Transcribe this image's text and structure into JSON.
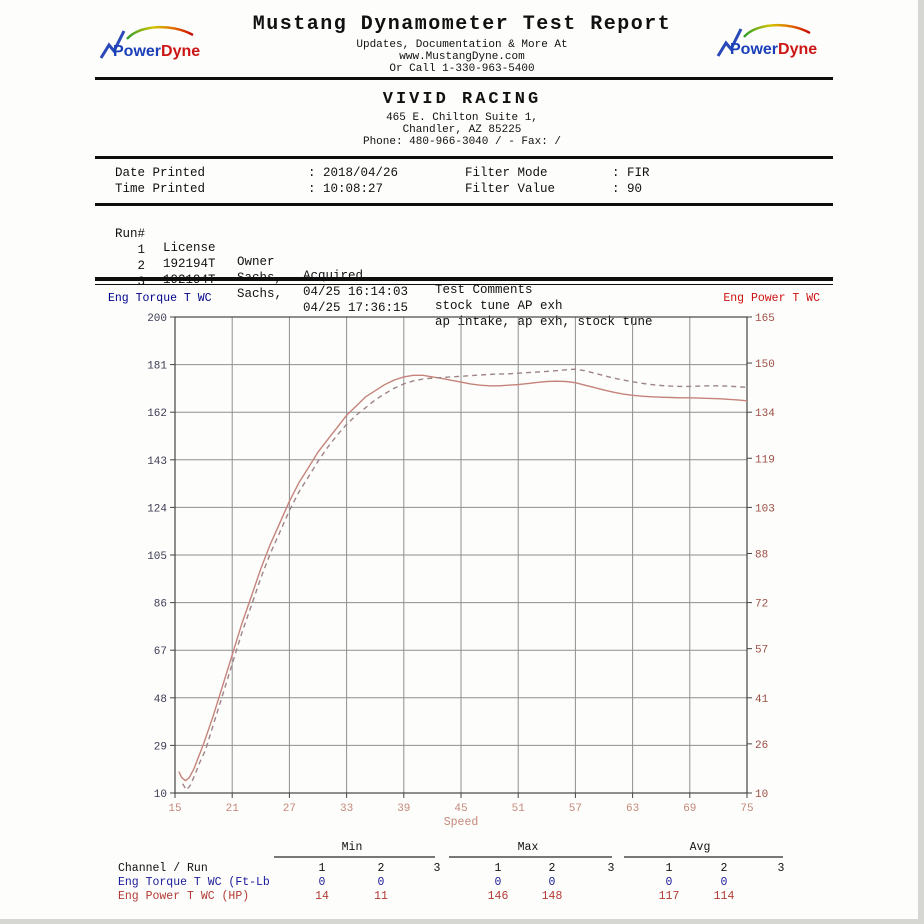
{
  "header": {
    "logo_power": "Power",
    "logo_dyne": "Dyne",
    "title": "Mustang Dynamometer Test Report",
    "subtitle1": "Updates, Documentation & More At",
    "subtitle2": "www.MustangDyne.com",
    "subtitle3": "Or Call 1-330-963-5400"
  },
  "shop": {
    "name": "VIVID RACING",
    "address1": "465 E. Chilton Suite 1,",
    "address2": "Chandler, AZ  85225",
    "phone_line": "Phone: 480-966-3040 /  - Fax:  /"
  },
  "print_info": {
    "date_label": "Date Printed",
    "date_value": ": 2018/04/26",
    "time_label": "Time Printed",
    "time_value": ": 10:08:27",
    "filter_mode_label": "Filter Mode",
    "filter_mode_value": ": FIR",
    "filter_value_label": "Filter Value",
    "filter_value_value": ": 90"
  },
  "runs": {
    "headers": {
      "run": "Run#",
      "license": "License",
      "owner": "Owner",
      "acquired": "Acquired",
      "comments": "Test Comments"
    },
    "rows": [
      {
        "run": "1",
        "license": "192194T",
        "owner": "Sachs,",
        "acquired": "04/25 16:14:03",
        "comments": "stock tune AP exh"
      },
      {
        "run": "2",
        "license": "192194T",
        "owner": "Sachs,",
        "acquired": "04/25 17:36:15",
        "comments": "ap intake, ap exh, stock tune"
      },
      {
        "run": "3",
        "license": "",
        "owner": "",
        "acquired": "",
        "comments": ""
      }
    ]
  },
  "chart_data": {
    "type": "line",
    "title": "",
    "grid": true,
    "left_axis": {
      "label": "Eng Torque T WC",
      "min": 10,
      "max": 200,
      "ticks": [
        200,
        181,
        162,
        143,
        124,
        105,
        86,
        67,
        48,
        29,
        10
      ],
      "color": "#00008b"
    },
    "right_axis": {
      "label": "Eng Power T WC",
      "min": 10,
      "max": 165,
      "ticks": [
        165,
        150,
        134,
        119,
        103,
        88,
        72,
        57,
        41,
        26,
        10
      ],
      "color": "#cc1111"
    },
    "x_axis": {
      "label": "Speed",
      "min": 15,
      "max": 75,
      "ticks": [
        15,
        21,
        27,
        33,
        39,
        45,
        51,
        57,
        63,
        69,
        75
      ]
    },
    "series": [
      {
        "name": "Run 1 Eng Power T WC (HP)",
        "style": "solid",
        "color": "#c5837b",
        "axis": "right",
        "points": [
          [
            15.4,
            17
          ],
          [
            15.7,
            15
          ],
          [
            16.1,
            14
          ],
          [
            16.5,
            15
          ],
          [
            17,
            18
          ],
          [
            17.5,
            22
          ],
          [
            18,
            26
          ],
          [
            19,
            35
          ],
          [
            20,
            45
          ],
          [
            21,
            55
          ],
          [
            22,
            65
          ],
          [
            23,
            74
          ],
          [
            24,
            83
          ],
          [
            25,
            91
          ],
          [
            26,
            98
          ],
          [
            27,
            105
          ],
          [
            28,
            111
          ],
          [
            29,
            116
          ],
          [
            30,
            121
          ],
          [
            31,
            125
          ],
          [
            32,
            129
          ],
          [
            33,
            133
          ],
          [
            34,
            136
          ],
          [
            35,
            139
          ],
          [
            36,
            141
          ],
          [
            37,
            143
          ],
          [
            38,
            144.5
          ],
          [
            39,
            145.5
          ],
          [
            40,
            146
          ],
          [
            41,
            146
          ],
          [
            42,
            145.5
          ],
          [
            43,
            145
          ],
          [
            44,
            144.4
          ],
          [
            45,
            143.8
          ],
          [
            46,
            143.2
          ],
          [
            47,
            142.8
          ],
          [
            48,
            142.6
          ],
          [
            49,
            142.6
          ],
          [
            50,
            142.8
          ],
          [
            51,
            143
          ],
          [
            52,
            143.3
          ],
          [
            53,
            143.7
          ],
          [
            54,
            144
          ],
          [
            55,
            144.1
          ],
          [
            56,
            144
          ],
          [
            57,
            143.6
          ],
          [
            58,
            142.8
          ],
          [
            59,
            142
          ],
          [
            60,
            141.2
          ],
          [
            61,
            140.5
          ],
          [
            62,
            139.9
          ],
          [
            63,
            139.5
          ],
          [
            64,
            139.2
          ],
          [
            65,
            139
          ],
          [
            66,
            138.9
          ],
          [
            67,
            138.8
          ],
          [
            68,
            138.7
          ],
          [
            69,
            138.7
          ],
          [
            70,
            138.6
          ],
          [
            71,
            138.5
          ],
          [
            72,
            138.4
          ],
          [
            73,
            138.2
          ],
          [
            74,
            138
          ],
          [
            75,
            137.7
          ]
        ]
      },
      {
        "name": "Run 2 Eng Power T WC (HP)",
        "style": "dashed",
        "color": "#9f8486",
        "axis": "right",
        "points": [
          [
            15.8,
            13
          ],
          [
            16.2,
            11
          ],
          [
            16.6,
            12.5
          ],
          [
            17.1,
            16
          ],
          [
            17.6,
            20
          ],
          [
            18.2,
            24
          ],
          [
            19,
            32
          ],
          [
            20,
            42
          ],
          [
            21,
            52
          ],
          [
            22,
            62
          ],
          [
            23,
            71
          ],
          [
            24,
            80
          ],
          [
            25,
            88
          ],
          [
            26,
            95
          ],
          [
            27,
            102
          ],
          [
            28,
            108
          ],
          [
            29,
            113
          ],
          [
            30,
            118
          ],
          [
            31,
            122.5
          ],
          [
            32,
            126.5
          ],
          [
            33,
            130
          ],
          [
            34,
            133
          ],
          [
            35,
            135.5
          ],
          [
            36,
            138
          ],
          [
            37,
            140
          ],
          [
            38,
            141.8
          ],
          [
            39,
            143.2
          ],
          [
            40,
            144.2
          ],
          [
            41,
            144.8
          ],
          [
            42,
            145.1
          ],
          [
            43,
            145.3
          ],
          [
            44,
            145.5
          ],
          [
            45,
            145.7
          ],
          [
            46,
            145.9
          ],
          [
            47,
            146.1
          ],
          [
            48,
            146.3
          ],
          [
            49,
            146.4
          ],
          [
            50,
            146.5
          ],
          [
            51,
            146.7
          ],
          [
            52,
            146.9
          ],
          [
            53,
            147.1
          ],
          [
            54,
            147.3
          ],
          [
            55,
            147.5
          ],
          [
            56,
            147.8
          ],
          [
            57,
            148
          ],
          [
            58,
            147.5
          ],
          [
            59,
            146.7
          ],
          [
            60,
            145.9
          ],
          [
            61,
            145.1
          ],
          [
            62,
            144.5
          ],
          [
            63,
            143.9
          ],
          [
            64,
            143.4
          ],
          [
            65,
            143
          ],
          [
            66,
            142.7
          ],
          [
            67,
            142.5
          ],
          [
            68,
            142.4
          ],
          [
            69,
            142.4
          ],
          [
            70,
            142.5
          ],
          [
            71,
            142.6
          ],
          [
            72,
            142.6
          ],
          [
            73,
            142.5
          ],
          [
            74,
            142.3
          ],
          [
            75,
            142.1
          ]
        ]
      }
    ]
  },
  "summary": {
    "groups": [
      "Min",
      "Max",
      "Avg"
    ],
    "channel_header": "Channel / Run",
    "run_numbers": [
      "1",
      "2",
      "3",
      "1",
      "2",
      "3",
      "1",
      "2",
      "3"
    ],
    "rows": [
      {
        "label": "Eng Torque T WC (Ft-Lb",
        "values": [
          "0",
          "0",
          "",
          "0",
          "0",
          "",
          "0",
          "0",
          ""
        ]
      },
      {
        "label": "Eng Power T WC (HP)",
        "values": [
          "14",
          "11",
          "",
          "146",
          "148",
          "",
          "117",
          "114",
          ""
        ]
      }
    ]
  }
}
